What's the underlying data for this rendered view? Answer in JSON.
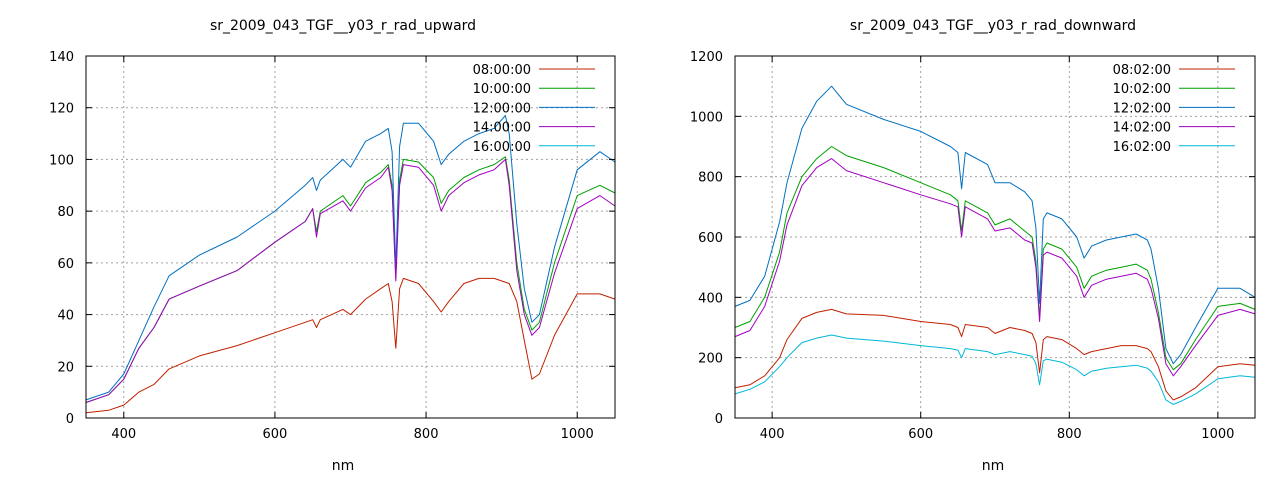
{
  "chart_data": [
    {
      "type": "line",
      "title": "sr_2009_043_TGF__y03_r_rad_upward",
      "xlabel": "nm",
      "ylabel": "",
      "xlim": [
        350,
        1050
      ],
      "ylim": [
        0,
        140
      ],
      "xticks": [
        400,
        600,
        800,
        1000
      ],
      "yticks": [
        0,
        20,
        40,
        60,
        80,
        100,
        120,
        140
      ],
      "grid": true,
      "legend_position": "top-right",
      "series": [
        {
          "name": "08:00:00",
          "color": "#c02000",
          "x": [
            350,
            380,
            400,
            420,
            440,
            460,
            500,
            550,
            600,
            640,
            650,
            655,
            660,
            690,
            700,
            720,
            740,
            750,
            755,
            760,
            765,
            770,
            790,
            810,
            820,
            830,
            850,
            870,
            890,
            910,
            920,
            930,
            940,
            950,
            970,
            1000,
            1030,
            1050
          ],
          "y": [
            2,
            3,
            5,
            10,
            13,
            19,
            24,
            28,
            33,
            37,
            38,
            35,
            38,
            42,
            40,
            46,
            50,
            52,
            45,
            27,
            50,
            54,
            52,
            45,
            41,
            45,
            52,
            54,
            54,
            52,
            45,
            30,
            15,
            17,
            32,
            48,
            48,
            46
          ]
        },
        {
          "name": "10:00:00",
          "color": "#00a000",
          "x": [
            350,
            380,
            400,
            420,
            440,
            460,
            500,
            550,
            600,
            640,
            650,
            655,
            660,
            690,
            700,
            720,
            740,
            750,
            755,
            760,
            765,
            770,
            790,
            810,
            820,
            830,
            850,
            870,
            890,
            905,
            910,
            920,
            930,
            940,
            950,
            970,
            1000,
            1030,
            1050
          ],
          "y": [
            6,
            9,
            15,
            27,
            35,
            46,
            51,
            57,
            68,
            76,
            81,
            72,
            80,
            86,
            82,
            91,
            95,
            98,
            90,
            54,
            92,
            100,
            99,
            93,
            83,
            88,
            93,
            96,
            98,
            101,
            92,
            60,
            42,
            34,
            37,
            60,
            86,
            90,
            87
          ]
        },
        {
          "name": "12:00:00",
          "color": "#0070c0",
          "x": [
            350,
            380,
            400,
            420,
            440,
            460,
            500,
            550,
            600,
            640,
            650,
            655,
            660,
            690,
            700,
            720,
            740,
            750,
            755,
            760,
            765,
            770,
            790,
            810,
            820,
            830,
            850,
            870,
            890,
            905,
            910,
            920,
            930,
            940,
            950,
            970,
            1000,
            1030,
            1050
          ],
          "y": [
            7,
            10,
            17,
            30,
            43,
            55,
            63,
            70,
            80,
            90,
            93,
            88,
            92,
            100,
            97,
            107,
            110,
            112,
            103,
            58,
            105,
            114,
            114,
            107,
            98,
            102,
            107,
            110,
            112,
            117,
            110,
            75,
            50,
            37,
            40,
            66,
            96,
            103,
            99
          ]
        },
        {
          "name": "14:00:00",
          "color": "#a000c0",
          "x": [
            350,
            380,
            400,
            420,
            440,
            460,
            500,
            550,
            600,
            640,
            650,
            655,
            660,
            690,
            700,
            720,
            740,
            750,
            755,
            760,
            765,
            770,
            790,
            810,
            820,
            830,
            850,
            870,
            890,
            905,
            910,
            920,
            930,
            940,
            950,
            970,
            1000,
            1030,
            1050
          ],
          "y": [
            6,
            9,
            15,
            27,
            35,
            46,
            51,
            57,
            68,
            76,
            81,
            70,
            79,
            84,
            80,
            89,
            93,
            97,
            88,
            53,
            90,
            98,
            97,
            90,
            80,
            86,
            91,
            94,
            96,
            100,
            90,
            57,
            40,
            32,
            35,
            56,
            81,
            86,
            82
          ]
        },
        {
          "name": "16:00:00",
          "color": "#00b8d8",
          "x": [],
          "y": []
        }
      ]
    },
    {
      "type": "line",
      "title": "sr_2009_043_TGF__y03_r_rad_downward",
      "xlabel": "nm",
      "ylabel": "",
      "xlim": [
        350,
        1050
      ],
      "ylim": [
        0,
        1200
      ],
      "xticks": [
        400,
        600,
        800,
        1000
      ],
      "yticks": [
        0,
        200,
        400,
        600,
        800,
        1000,
        1200
      ],
      "grid": true,
      "legend_position": "top-right",
      "series": [
        {
          "name": "08:02:00",
          "color": "#c02000",
          "x": [
            350,
            370,
            390,
            410,
            420,
            440,
            460,
            480,
            500,
            550,
            600,
            640,
            650,
            655,
            660,
            690,
            700,
            720,
            740,
            750,
            755,
            760,
            765,
            770,
            790,
            810,
            820,
            830,
            850,
            870,
            890,
            905,
            910,
            920,
            930,
            940,
            950,
            970,
            1000,
            1030,
            1050
          ],
          "y": [
            100,
            110,
            140,
            200,
            260,
            330,
            350,
            360,
            345,
            340,
            320,
            310,
            300,
            270,
            310,
            300,
            280,
            300,
            290,
            280,
            250,
            150,
            260,
            270,
            260,
            230,
            210,
            220,
            230,
            240,
            240,
            230,
            220,
            170,
            90,
            60,
            70,
            100,
            170,
            180,
            175
          ]
        },
        {
          "name": "10:02:00",
          "color": "#00a000",
          "x": [
            350,
            370,
            390,
            410,
            420,
            440,
            460,
            480,
            500,
            550,
            600,
            640,
            650,
            655,
            660,
            690,
            700,
            720,
            740,
            750,
            755,
            760,
            765,
            770,
            790,
            810,
            820,
            830,
            850,
            870,
            890,
            905,
            910,
            920,
            930,
            940,
            950,
            970,
            1000,
            1030,
            1050
          ],
          "y": [
            300,
            320,
            400,
            550,
            680,
            800,
            860,
            900,
            870,
            830,
            780,
            740,
            720,
            620,
            720,
            680,
            640,
            660,
            620,
            600,
            520,
            330,
            560,
            580,
            560,
            500,
            430,
            470,
            490,
            500,
            510,
            490,
            460,
            350,
            200,
            160,
            180,
            260,
            370,
            380,
            360
          ]
        },
        {
          "name": "12:02:00",
          "color": "#0070c0",
          "x": [
            350,
            370,
            390,
            410,
            420,
            440,
            460,
            480,
            500,
            550,
            600,
            640,
            650,
            655,
            660,
            690,
            700,
            720,
            740,
            750,
            755,
            760,
            765,
            770,
            790,
            810,
            820,
            830,
            850,
            870,
            890,
            905,
            910,
            920,
            930,
            940,
            950,
            970,
            1000,
            1030,
            1050
          ],
          "y": [
            370,
            390,
            470,
            650,
            780,
            960,
            1050,
            1100,
            1040,
            990,
            950,
            900,
            880,
            760,
            880,
            840,
            780,
            780,
            750,
            720,
            630,
            380,
            660,
            680,
            660,
            600,
            530,
            570,
            590,
            600,
            610,
            590,
            560,
            430,
            230,
            180,
            210,
            300,
            430,
            430,
            400
          ]
        },
        {
          "name": "14:02:00",
          "color": "#a000c0",
          "x": [
            350,
            370,
            390,
            410,
            420,
            440,
            460,
            480,
            500,
            550,
            600,
            640,
            650,
            655,
            660,
            690,
            700,
            720,
            740,
            750,
            755,
            760,
            765,
            770,
            790,
            810,
            820,
            830,
            850,
            870,
            890,
            905,
            910,
            920,
            930,
            940,
            950,
            970,
            1000,
            1030,
            1050
          ],
          "y": [
            270,
            290,
            370,
            520,
            640,
            770,
            830,
            860,
            820,
            780,
            740,
            710,
            700,
            600,
            700,
            660,
            620,
            630,
            590,
            580,
            500,
            320,
            540,
            550,
            530,
            470,
            400,
            440,
            460,
            470,
            480,
            460,
            430,
            330,
            180,
            140,
            170,
            240,
            340,
            360,
            345
          ]
        },
        {
          "name": "16:02:00",
          "color": "#00b8d8",
          "x": [
            350,
            370,
            390,
            410,
            420,
            440,
            460,
            480,
            500,
            550,
            600,
            640,
            650,
            655,
            660,
            690,
            700,
            720,
            740,
            750,
            755,
            760,
            765,
            770,
            790,
            810,
            820,
            830,
            850,
            870,
            890,
            905,
            910,
            920,
            930,
            940,
            950,
            970,
            1000,
            1030,
            1050
          ],
          "y": [
            80,
            95,
            120,
            170,
            200,
            250,
            265,
            275,
            265,
            255,
            240,
            230,
            225,
            200,
            230,
            220,
            210,
            220,
            210,
            205,
            180,
            110,
            190,
            195,
            185,
            160,
            140,
            155,
            165,
            170,
            175,
            165,
            155,
            120,
            60,
            45,
            55,
            80,
            130,
            140,
            135
          ]
        }
      ]
    }
  ]
}
